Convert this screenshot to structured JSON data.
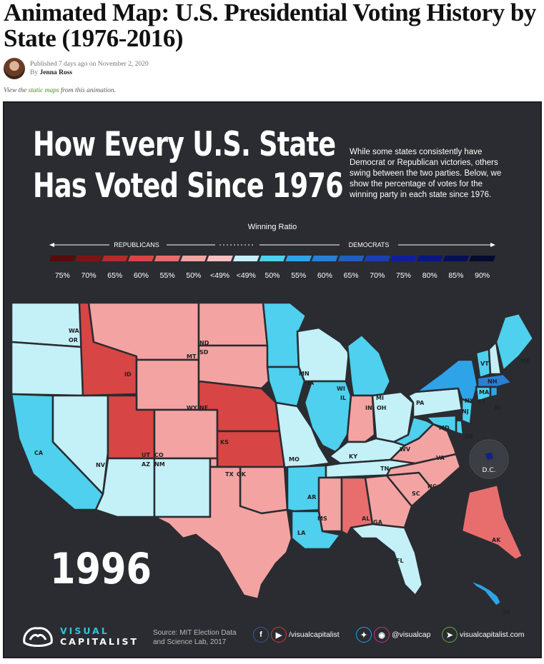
{
  "article": {
    "title": "Animated Map: U.S. Presidential Voting History by State (1976-2016)",
    "published": "Published 7 days ago on November 2, 2020",
    "by": "By",
    "author": "Jenna Ross",
    "note_prefix": "View the",
    "note_link": "static maps",
    "note_suffix": "from this animation."
  },
  "graphic": {
    "headline_line1": "How Every U.S. State",
    "headline_line2": "Has Voted Since 1976",
    "intro": "While some states consistently have Democrat or Republican victories, others swing between the two parties. Below, we show the percentage of votes for the winning party in each state since 1976.",
    "year": "1996"
  },
  "legend": {
    "title": "Winning Ratio",
    "left_label": "REPUBLICANS",
    "right_label": "DEMOCRATS",
    "ticks": [
      "75%",
      "70%",
      "65%",
      "60%",
      "55%",
      "50%",
      "<49%",
      "<49%",
      "50%",
      "55%",
      "60%",
      "65%",
      "70%",
      "75%",
      "80%",
      "85%",
      "90%"
    ],
    "colors": [
      "#5a0a0a",
      "#7d1414",
      "#b52a2a",
      "#d84545",
      "#e86e6e",
      "#f4a3a3",
      "#f8c1c1",
      "#c4f0f8",
      "#4ed0ee",
      "#2fa3e8",
      "#2a7fd5",
      "#1f5fbf",
      "#1a3fb0",
      "#0e1f9c",
      "#0a1680",
      "#070f58",
      "#050a30"
    ]
  },
  "states": [
    {
      "abbr": "WA",
      "color": "#c4f0f8"
    },
    {
      "abbr": "OR",
      "color": "#c4f0f8"
    },
    {
      "abbr": "CA",
      "color": "#4ed0ee"
    },
    {
      "abbr": "NV",
      "color": "#c4f0f8"
    },
    {
      "abbr": "ID",
      "color": "#d84545"
    },
    {
      "abbr": "MT",
      "color": "#f4a3a3"
    },
    {
      "abbr": "WY",
      "color": "#f4a3a3"
    },
    {
      "abbr": "UT",
      "color": "#d84545"
    },
    {
      "abbr": "CO",
      "color": "#f4a3a3"
    },
    {
      "abbr": "AZ",
      "color": "#c4f0f8"
    },
    {
      "abbr": "NM",
      "color": "#c4f0f8"
    },
    {
      "abbr": "ND",
      "color": "#f4a3a3"
    },
    {
      "abbr": "SD",
      "color": "#f4a3a3"
    },
    {
      "abbr": "NE",
      "color": "#d84545"
    },
    {
      "abbr": "KS",
      "color": "#d84545"
    },
    {
      "abbr": "OK",
      "color": "#f4a3a3"
    },
    {
      "abbr": "TX",
      "color": "#f4a3a3"
    },
    {
      "abbr": "MN",
      "color": "#4ed0ee"
    },
    {
      "abbr": "IA",
      "color": "#4ed0ee"
    },
    {
      "abbr": "MO",
      "color": "#c4f0f8"
    },
    {
      "abbr": "AR",
      "color": "#4ed0ee"
    },
    {
      "abbr": "LA",
      "color": "#4ed0ee"
    },
    {
      "abbr": "WI",
      "color": "#c4f0f8"
    },
    {
      "abbr": "IL",
      "color": "#4ed0ee"
    },
    {
      "abbr": "MI",
      "color": "#4ed0ee"
    },
    {
      "abbr": "IN",
      "color": "#f4a3a3"
    },
    {
      "abbr": "OH",
      "color": "#c4f0f8"
    },
    {
      "abbr": "KY",
      "color": "#c4f0f8"
    },
    {
      "abbr": "TN",
      "color": "#c4f0f8"
    },
    {
      "abbr": "MS",
      "color": "#f4a3a3"
    },
    {
      "abbr": "AL",
      "color": "#e86e6e"
    },
    {
      "abbr": "GA",
      "color": "#f4a3a3"
    },
    {
      "abbr": "FL",
      "color": "#c4f0f8"
    },
    {
      "abbr": "SC",
      "color": "#f4a3a3"
    },
    {
      "abbr": "NC",
      "color": "#f4a3a3"
    },
    {
      "abbr": "VA",
      "color": "#f4a3a3"
    },
    {
      "abbr": "WV",
      "color": "#4ed0ee"
    },
    {
      "abbr": "PA",
      "color": "#c4f0f8"
    },
    {
      "abbr": "NY",
      "color": "#2fa3e8"
    },
    {
      "abbr": "NJ",
      "color": "#4ed0ee"
    },
    {
      "abbr": "DE",
      "color": "#4ed0ee"
    },
    {
      "abbr": "MD",
      "color": "#4ed0ee"
    },
    {
      "abbr": "VT",
      "color": "#4ed0ee"
    },
    {
      "abbr": "NH",
      "color": "#c4f0f8"
    },
    {
      "abbr": "ME",
      "color": "#4ed0ee"
    },
    {
      "abbr": "MA",
      "color": "#2a7fd5"
    },
    {
      "abbr": "CT",
      "color": "#4ed0ee"
    },
    {
      "abbr": "RI",
      "color": "#2fa3e8"
    },
    {
      "abbr": "AK",
      "color": "#e86e6e"
    },
    {
      "abbr": "HI",
      "color": "#2fa3e8"
    },
    {
      "abbr": "D.C.",
      "color": "#0e1f9c"
    }
  ],
  "footer": {
    "brand_line1": "VISUAL",
    "brand_line2": "CAPITALIST",
    "source": "Source: MIT Election Data and Science Lab, 2017",
    "handle1": "/visualcapitalist",
    "handle2": "@visualcap",
    "site": "visualcapitalist.com",
    "icons": [
      "facebook-icon",
      "youtube-icon",
      "twitter-icon",
      "instagram-icon",
      "cursor-icon"
    ]
  }
}
